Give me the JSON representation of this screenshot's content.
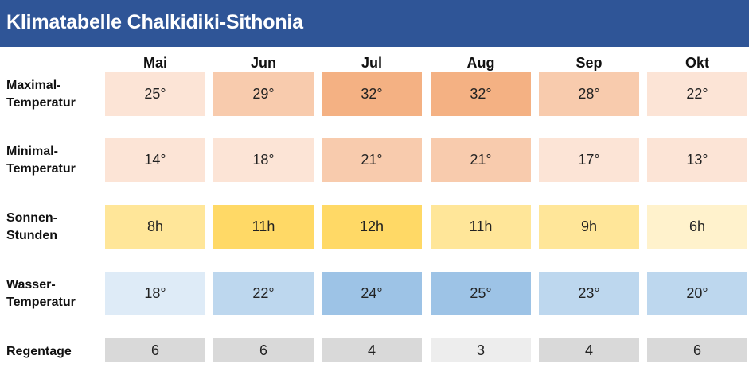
{
  "title": "Klimatabelle Chalkidiki-Sithonia",
  "chart_data": {
    "type": "table",
    "title": "Klimatabelle Chalkidiki-Sithonia",
    "columns": [
      "Mai",
      "Jun",
      "Jul",
      "Aug",
      "Sep",
      "Okt"
    ],
    "rows": [
      {
        "label_line1": "Maximal-",
        "label_line2": "Temperatur",
        "cells": [
          "25°",
          "29°",
          "32°",
          "32°",
          "28°",
          "22°"
        ],
        "colors": [
          "#fce4d6",
          "#f8cbad",
          "#f4b183",
          "#f4b183",
          "#f8cbad",
          "#fce4d6"
        ]
      },
      {
        "label_line1": "Minimal-",
        "label_line2": "Temperatur",
        "cells": [
          "14°",
          "18°",
          "21°",
          "21°",
          "17°",
          "13°"
        ],
        "colors": [
          "#fce4d6",
          "#fce4d6",
          "#f8cbad",
          "#f8cbad",
          "#fce4d6",
          "#fce4d6"
        ]
      },
      {
        "label_line1": "Sonnen-",
        "label_line2": "Stunden",
        "cells": [
          "8h",
          "11h",
          "12h",
          "11h",
          "9h",
          "6h"
        ],
        "colors": [
          "#ffe699",
          "#ffd966",
          "#ffd966",
          "#ffe699",
          "#ffe699",
          "#fff2cc"
        ]
      },
      {
        "label_line1": "Wasser-",
        "label_line2": "Temperatur",
        "cells": [
          "18°",
          "22°",
          "24°",
          "25°",
          "23°",
          "20°"
        ],
        "colors": [
          "#deebf7",
          "#bdd7ee",
          "#9dc3e6",
          "#9dc3e6",
          "#bdd7ee",
          "#bdd7ee"
        ]
      },
      {
        "label_line1": "Regentage",
        "label_line2": "",
        "cells": [
          "6",
          "6",
          "4",
          "3",
          "4",
          "6"
        ],
        "colors": [
          "#d9d9d9",
          "#d9d9d9",
          "#d9d9d9",
          "#ededed",
          "#d9d9d9",
          "#d9d9d9"
        ]
      }
    ]
  }
}
